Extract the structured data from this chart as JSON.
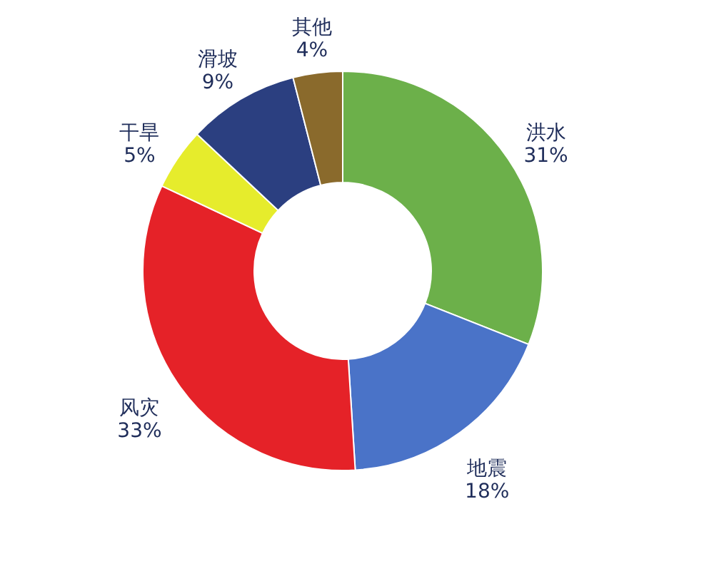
{
  "chart_data": {
    "type": "donut",
    "categories": [
      "洪水",
      "地震",
      "风灾",
      "干旱",
      "滑坡",
      "其他"
    ],
    "values": [
      31,
      18,
      33,
      5,
      9,
      4
    ],
    "value_labels": [
      "31%",
      "18%",
      "33%",
      "5%",
      "9%",
      "4%"
    ],
    "colors": [
      "#6cb04a",
      "#4a73c8",
      "#e52228",
      "#e6ec2c",
      "#2b3f80",
      "#8a6a2c"
    ],
    "legend": false
  }
}
